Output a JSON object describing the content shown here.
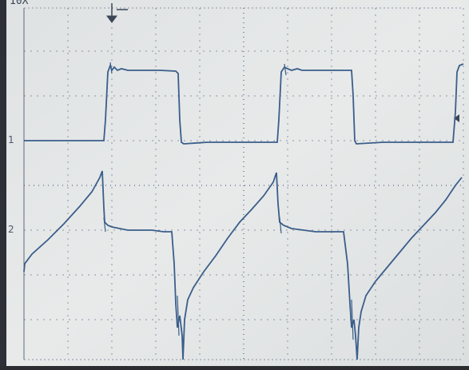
{
  "scope": {
    "top_readout": "10X",
    "channel_1_marker": "1",
    "channel_2_marker": "2",
    "screen_color": "#e4e7e8",
    "trace_color": "#3a5e8a",
    "grid_color": "#8a95a5",
    "frame_color": "#2d3036"
  }
}
